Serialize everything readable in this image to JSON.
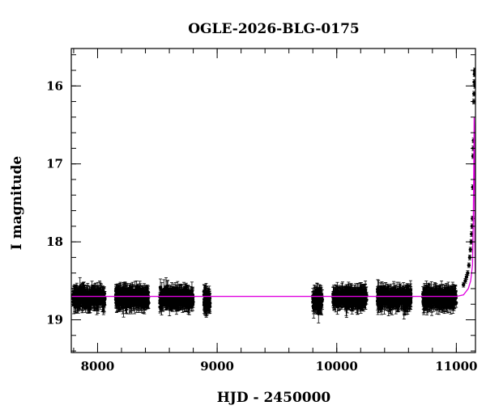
{
  "chart_data": {
    "type": "scatter",
    "title": "OGLE-2026-BLG-0175",
    "xlabel": "HJD - 2450000",
    "ylabel": "I magnitude",
    "xlim": [
      7780,
      11160
    ],
    "ylim": [
      19.42,
      15.52
    ],
    "y_inverted": true,
    "grid": false,
    "x_ticks": [
      8000,
      9000,
      10000,
      11000
    ],
    "y_ticks": [
      16,
      17,
      18,
      19
    ],
    "x_minor_step": 200,
    "y_minor_step": 0.2,
    "colors": {
      "points": "#000000",
      "model": "#e000e0",
      "frame": "#000000"
    },
    "baseline_magnitude": 18.7,
    "observing_seasons": [
      {
        "start": 7790,
        "end": 8060,
        "mean_mag": 18.72,
        "scatter": 0.12
      },
      {
        "start": 8150,
        "end": 8430,
        "mean_mag": 18.72,
        "scatter": 0.12
      },
      {
        "start": 8520,
        "end": 8800,
        "mean_mag": 18.72,
        "scatter": 0.12
      },
      {
        "start": 8890,
        "end": 8940,
        "mean_mag": 18.75,
        "scatter": 0.15
      },
      {
        "start": 9800,
        "end": 9880,
        "mean_mag": 18.75,
        "scatter": 0.15
      },
      {
        "start": 9970,
        "end": 10250,
        "mean_mag": 18.72,
        "scatter": 0.12
      },
      {
        "start": 10340,
        "end": 10620,
        "mean_mag": 18.72,
        "scatter": 0.12
      },
      {
        "start": 10720,
        "end": 11000,
        "mean_mag": 18.72,
        "scatter": 0.12
      }
    ],
    "rise_points": [
      {
        "x": 11060,
        "y": 18.55
      },
      {
        "x": 11075,
        "y": 18.5
      },
      {
        "x": 11085,
        "y": 18.45
      },
      {
        "x": 11095,
        "y": 18.4
      },
      {
        "x": 11105,
        "y": 18.3
      },
      {
        "x": 11112,
        "y": 18.2
      },
      {
        "x": 11118,
        "y": 18.1
      },
      {
        "x": 11124,
        "y": 18.0
      },
      {
        "x": 11128,
        "y": 17.9
      },
      {
        "x": 11132,
        "y": 17.8
      },
      {
        "x": 11135,
        "y": 17.7
      },
      {
        "x": 11138,
        "y": 17.3
      },
      {
        "x": 11140,
        "y": 16.9
      },
      {
        "x": 11142,
        "y": 16.8
      },
      {
        "x": 11144,
        "y": 16.7
      },
      {
        "x": 11146,
        "y": 16.2
      },
      {
        "x": 11148,
        "y": 16.1
      },
      {
        "x": 11150,
        "y": 15.95
      },
      {
        "x": 11152,
        "y": 15.85
      },
      {
        "x": 11154,
        "y": 15.8
      },
      {
        "x": 11156,
        "y": 16.0
      }
    ],
    "model_curve": [
      {
        "x": 7780,
        "y": 18.7
      },
      {
        "x": 11000,
        "y": 18.7
      },
      {
        "x": 11060,
        "y": 18.68
      },
      {
        "x": 11100,
        "y": 18.6
      },
      {
        "x": 11120,
        "y": 18.5
      },
      {
        "x": 11135,
        "y": 18.3
      },
      {
        "x": 11142,
        "y": 17.7
      },
      {
        "x": 11146,
        "y": 17.0
      },
      {
        "x": 11149,
        "y": 16.4
      },
      {
        "x": 11151,
        "y": 16.5
      },
      {
        "x": 11153,
        "y": 17.3
      },
      {
        "x": 11155,
        "y": 18.0
      },
      {
        "x": 11158,
        "y": 18.4
      },
      {
        "x": 11160,
        "y": 18.4
      }
    ]
  }
}
